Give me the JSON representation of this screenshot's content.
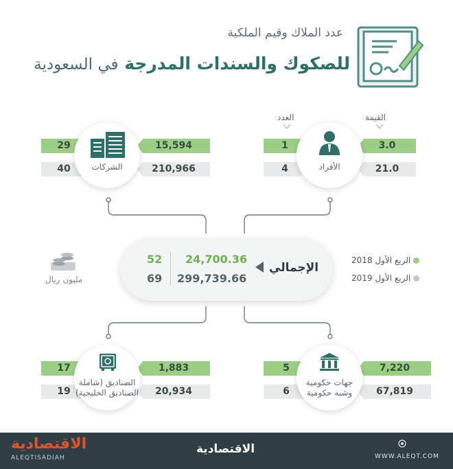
{
  "header": {
    "title_line1": "عدد الملاك وقيم الملكية",
    "title_line2_bold": "للصكوك والسندات المدرجة",
    "title_line2_light": "في السعودية"
  },
  "columns": {
    "value": "القيمة",
    "count": "العدد"
  },
  "legend": {
    "q1_2018": "الربع الأول 2018",
    "q1_2019": "الربع الأول 2019",
    "colors": {
      "q1_2018": "#9ccf85",
      "q1_2019": "#c3c7ca"
    }
  },
  "unit": "مليون ريال",
  "total": {
    "label": "الإجمالي",
    "value_2018": "24,700.36",
    "value_2019": "299,739.66",
    "count_2018": "52",
    "count_2019": "69"
  },
  "individuals": {
    "label": "الأفراد",
    "value_2018": "3.0",
    "value_2019": "21.0",
    "count_2018": "1",
    "count_2019": "4",
    "icon": "person-icon"
  },
  "companies": {
    "label": "الشركات",
    "value_2018": "15,594",
    "value_2019": "210,966",
    "count_2018": "29",
    "count_2019": "40",
    "icon": "buildings-icon"
  },
  "government": {
    "label_line1": "جهات حكومية",
    "label_line2": "وشبه حكومية",
    "value_2018": "7,220",
    "value_2019": "67,819",
    "count_2018": "5",
    "count_2019": "6",
    "icon": "government-building-icon"
  },
  "funds": {
    "label_line1": "الصناديق (شاملة",
    "label_line2": "الصناديق الخليجية)",
    "value_2018": "1,883",
    "value_2019": "20,934",
    "count_2018": "17",
    "count_2019": "19",
    "icon": "safe-icon"
  },
  "footer": {
    "logo_left": "الاقتصادية",
    "brand_latin": "ALEQTISADIAH",
    "logo_center": "الاقتصادية",
    "website": "WWW.ALEQT.COM"
  }
}
